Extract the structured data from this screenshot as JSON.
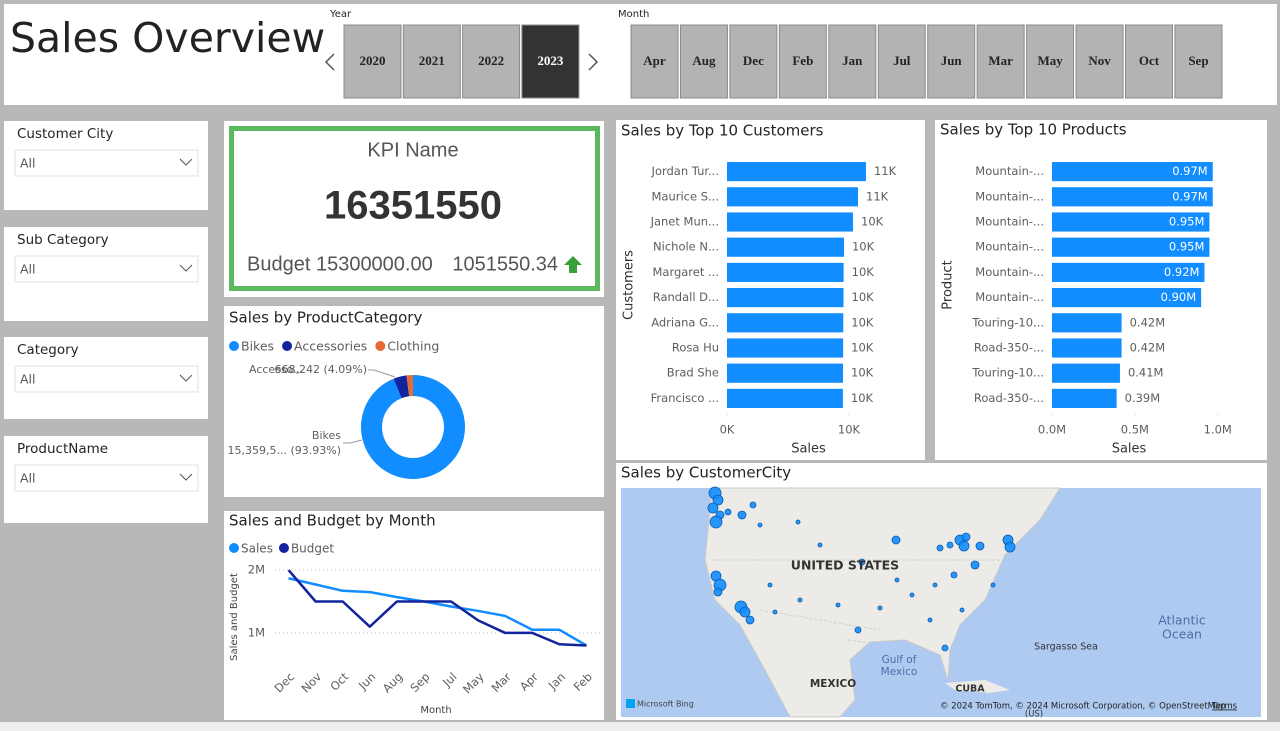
{
  "header": {
    "title": "Sales Overview",
    "year_label": "Year",
    "years": [
      "2020",
      "2021",
      "2022",
      "2023"
    ],
    "selected_year": "2023",
    "month_label": "Month",
    "months": [
      "Apr",
      "Aug",
      "Dec",
      "Feb",
      "Jan",
      "Jul",
      "Jun",
      "Mar",
      "May",
      "Nov",
      "Oct",
      "Sep"
    ]
  },
  "filters": [
    {
      "label": "Customer City",
      "value": "All"
    },
    {
      "label": "Sub Category",
      "value": "All"
    },
    {
      "label": "Category",
      "value": "All"
    },
    {
      "label": "ProductName",
      "value": "All"
    }
  ],
  "kpi": {
    "name": "KPI Name",
    "value": 16351550,
    "budget": "Budget 15300000.00",
    "variance": "1051550.34"
  },
  "category_chart": {
    "type": "donut",
    "title": "Sales by ProductCategory",
    "categories": [
      "Bikes",
      "Accessories",
      "Clothing"
    ],
    "values": [
      15359548,
      668242,
      323760
    ],
    "colors": [
      "#118DFF",
      "#12239E",
      "#E66C37"
    ],
    "slice_labels": [
      "Bikes",
      "Accesso...",
      null
    ],
    "value_labels": [
      "15,359,5... (93.93%)",
      "668,242 (4.09%)",
      null
    ]
  },
  "month_chart": {
    "type": "line",
    "title": "Sales and Budget by Month",
    "categories": [
      "Dec",
      "Nov",
      "Oct",
      "Jun",
      "Aug",
      "Sep",
      "Jul",
      "May",
      "Mar",
      "Apr",
      "Jan",
      "Feb"
    ],
    "series": [
      {
        "name": "Sales",
        "color": "#118DFF",
        "values": [
          1870000,
          1770000,
          1670000,
          1650000,
          1570000,
          1500000,
          1420000,
          1350000,
          1270000,
          1050000,
          1050000,
          800000
        ]
      },
      {
        "name": "Budget",
        "color": "#12239E",
        "values": [
          2000000,
          1500000,
          1500000,
          1100000,
          1500000,
          1500000,
          1500000,
          1200000,
          1000000,
          1000000,
          820000,
          800000
        ]
      }
    ],
    "ylim": [
      490000,
      2160000
    ],
    "yticks": [
      {
        "value": 1000000,
        "label": "1M"
      },
      {
        "value": 2000000,
        "label": "2M"
      }
    ],
    "xlabel": "Month",
    "ylabel": "Sales and Budget",
    "grid": true
  },
  "customers_chart": {
    "type": "hbar",
    "title": "Sales by Top 10 Customers",
    "categories": [
      "Jordan Tur...",
      "Maurice S...",
      "Janet Mun...",
      "Nichole N...",
      "Margaret ...",
      "Randall D...",
      "Adriana G...",
      "Rosa Hu",
      "Brad She",
      "Francisco ..."
    ],
    "values": [
      11390,
      10740,
      10330,
      9590,
      9560,
      9550,
      9530,
      9520,
      9510,
      9500
    ],
    "value_labels": [
      "11K",
      "11K",
      "10K",
      "10K",
      "10K",
      "10K",
      "10K",
      "10K",
      "10K",
      "10K"
    ],
    "color": "#118DFF",
    "xlim": [
      0,
      15000
    ],
    "xticks": [
      {
        "value": 0,
        "label": "0K"
      },
      {
        "value": 10000,
        "label": "10K"
      }
    ],
    "xlabel": "Sales",
    "ylabel": "Customers"
  },
  "products_chart": {
    "type": "hbar",
    "title": "Sales by Top 10 Products",
    "categories": [
      "Mountain-...",
      "Mountain-...",
      "Mountain-...",
      "Mountain-...",
      "Mountain-...",
      "Mountain-...",
      "Touring-10...",
      "Road-350-...",
      "Touring-10...",
      "Road-350-..."
    ],
    "values": [
      970000,
      970000,
      950000,
      950000,
      920000,
      900000,
      420000,
      420000,
      410000,
      390000
    ],
    "value_labels": [
      "0.97M",
      "0.97M",
      "0.95M",
      "0.95M",
      "0.92M",
      "0.90M",
      "0.42M",
      "0.42M",
      "0.41M",
      "0.39M"
    ],
    "color": "#118DFF",
    "xlim": [
      0,
      1050000
    ],
    "xticks": [
      {
        "value": 0,
        "label": "0.0M"
      },
      {
        "value": 500000,
        "label": "0.5M"
      },
      {
        "value": 1000000,
        "label": "1.0M"
      }
    ],
    "xlabel": "Sales",
    "ylabel": "Product"
  },
  "map": {
    "title": "Sales by CustomerCity",
    "labels": [
      "UNITED STATES",
      "MEXICO",
      "CUBA",
      "(US)",
      "Sargasso Sea"
    ],
    "gulf": [
      "Gulf of",
      "Mexico"
    ],
    "ocean": [
      "Atlantic",
      "Ocean"
    ],
    "brand": "Microsoft Bing",
    "copyright": "© 2024 TomTom, © 2024 Microsoft Corporation, © OpenStreetMap",
    "terms": "Terms"
  }
}
